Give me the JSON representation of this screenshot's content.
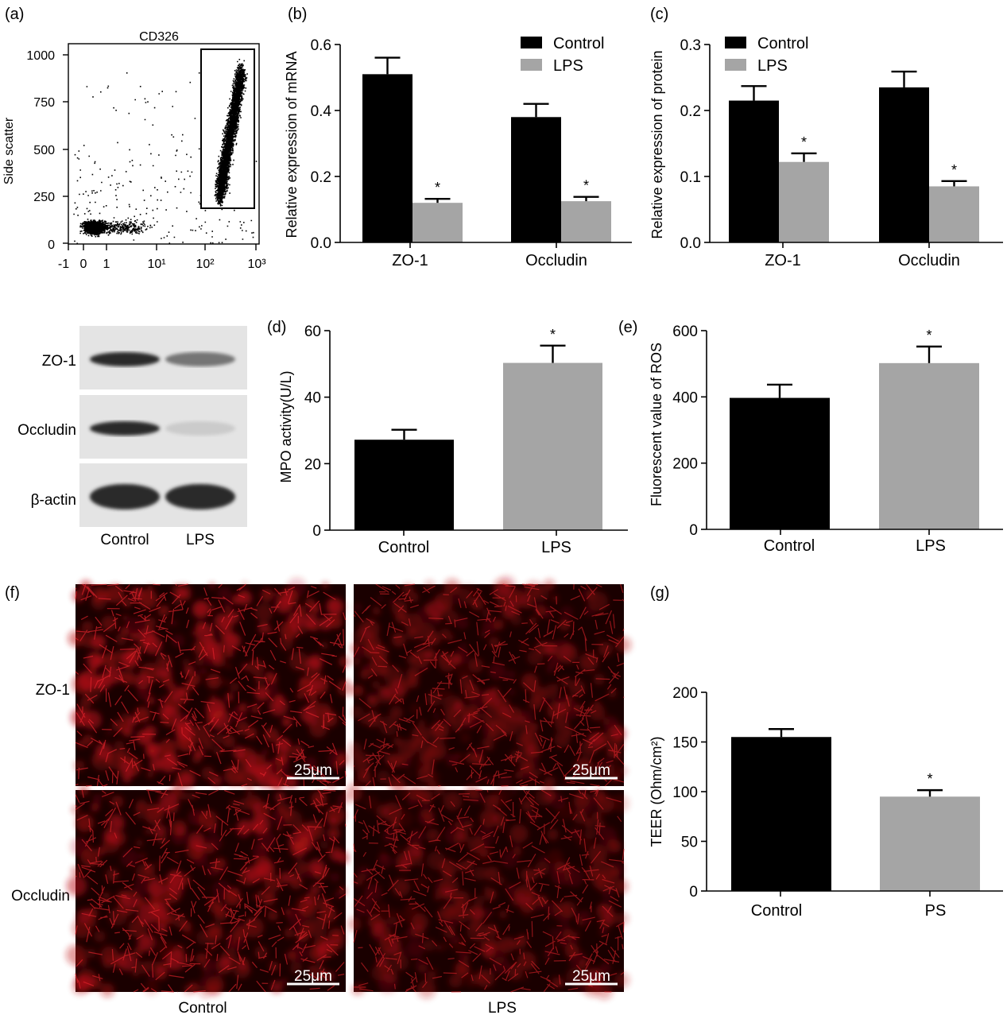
{
  "panel_labels": {
    "a": "(a)",
    "b": "(b)",
    "c": "(c)",
    "d": "(d)",
    "e": "(e)",
    "f": "(f)",
    "g": "(g)"
  },
  "colors": {
    "control": "#000000",
    "lps": "#a5a5a5",
    "dots": "#000000",
    "fluorescence": "#c0141a"
  },
  "western_blot": {
    "rows": [
      "ZO-1",
      "Occludin",
      "β-actin"
    ],
    "lanes": [
      "Control",
      "LPS"
    ],
    "band_intensity": [
      [
        0.9,
        0.55
      ],
      [
        0.9,
        0.15
      ],
      [
        0.9,
        0.9
      ]
    ]
  },
  "immunofluorescence": {
    "rows": [
      "ZO-1",
      "Occludin"
    ],
    "cols": [
      "Control",
      "LPS"
    ],
    "scale_bar": "25μm",
    "intensity": [
      [
        0.85,
        0.6
      ],
      [
        0.75,
        0.55
      ]
    ]
  },
  "chart_data": [
    {
      "id": "a",
      "type": "scatter",
      "title": "CD326",
      "ylabel": "Side scatter",
      "xlabel": "",
      "xticks": [
        "-1",
        "0",
        "1",
        "10¹",
        "10²",
        "10³"
      ],
      "yticks": [
        "0",
        "250",
        "500",
        "750",
        "1000"
      ],
      "ylim": [
        0,
        1050
      ],
      "clusters": [
        {
          "name": "negative",
          "x_range": [
            "-1",
            "10"
          ],
          "y_range": [
            0,
            250
          ],
          "count": 1500
        },
        {
          "name": "positive",
          "x_range": [
            "10²",
            "10³"
          ],
          "y_range": [
            200,
            1000
          ],
          "count": 3800
        }
      ],
      "gate": {
        "x_range": [
          "10²",
          "10³"
        ],
        "y_range": [
          190,
          1010
        ]
      }
    },
    {
      "id": "b",
      "type": "bar",
      "ylabel": "Relative expression of mRNA",
      "categories": [
        "ZO-1",
        "Occludin"
      ],
      "series": [
        {
          "name": "Control",
          "values": [
            0.51,
            0.38
          ],
          "errors": [
            0.05,
            0.04
          ]
        },
        {
          "name": "LPS",
          "values": [
            0.12,
            0.125
          ],
          "errors": [
            0.012,
            0.013
          ]
        }
      ],
      "yticks": [
        "0.0",
        "0.2",
        "0.4",
        "0.6"
      ],
      "ylim": [
        0,
        0.6
      ],
      "significance": [
        {
          "series": "LPS",
          "category": "ZO-1",
          "label": "*"
        },
        {
          "series": "LPS",
          "category": "Occludin",
          "label": "*"
        }
      ],
      "legend": "top-right"
    },
    {
      "id": "c",
      "type": "bar",
      "ylabel": "Relative expression of protein",
      "categories": [
        "ZO-1",
        "Occludin"
      ],
      "series": [
        {
          "name": "Control",
          "values": [
            0.215,
            0.235
          ],
          "errors": [
            0.022,
            0.024
          ]
        },
        {
          "name": "LPS",
          "values": [
            0.122,
            0.085
          ],
          "errors": [
            0.013,
            0.008
          ]
        }
      ],
      "yticks": [
        "0.0",
        "0.1",
        "0.2",
        "0.3"
      ],
      "ylim": [
        0,
        0.3
      ],
      "significance": [
        {
          "series": "LPS",
          "category": "ZO-1",
          "label": "*"
        },
        {
          "series": "LPS",
          "category": "Occludin",
          "label": "*"
        }
      ],
      "legend": "top-left"
    },
    {
      "id": "d",
      "type": "bar",
      "ylabel": "MPO activity(U/L)",
      "categories": [
        "Control",
        "LPS"
      ],
      "values": [
        27.2,
        50.3
      ],
      "errors": [
        3.0,
        5.2
      ],
      "yticks": [
        "0",
        "20",
        "40",
        "60"
      ],
      "ylim": [
        0,
        60
      ],
      "significance": [
        {
          "category": "LPS",
          "label": "*"
        }
      ]
    },
    {
      "id": "e",
      "type": "bar",
      "ylabel": "Fluorescent value of ROS",
      "categories": [
        "Control",
        "LPS"
      ],
      "values": [
        397,
        502
      ],
      "errors": [
        40,
        50
      ],
      "yticks": [
        "0",
        "200",
        "400",
        "600"
      ],
      "ylim": [
        0,
        600
      ],
      "significance": [
        {
          "category": "LPS",
          "label": "*"
        }
      ]
    },
    {
      "id": "g",
      "type": "bar",
      "ylabel": "TEER (Ohm/cm²)",
      "categories": [
        "Control",
        "PS"
      ],
      "values": [
        155,
        95
      ],
      "errors": [
        8,
        6.5
      ],
      "yticks": [
        "0",
        "50",
        "100",
        "150",
        "200"
      ],
      "ylim": [
        0,
        200
      ],
      "significance": [
        {
          "category": "PS",
          "label": "*"
        }
      ]
    }
  ]
}
